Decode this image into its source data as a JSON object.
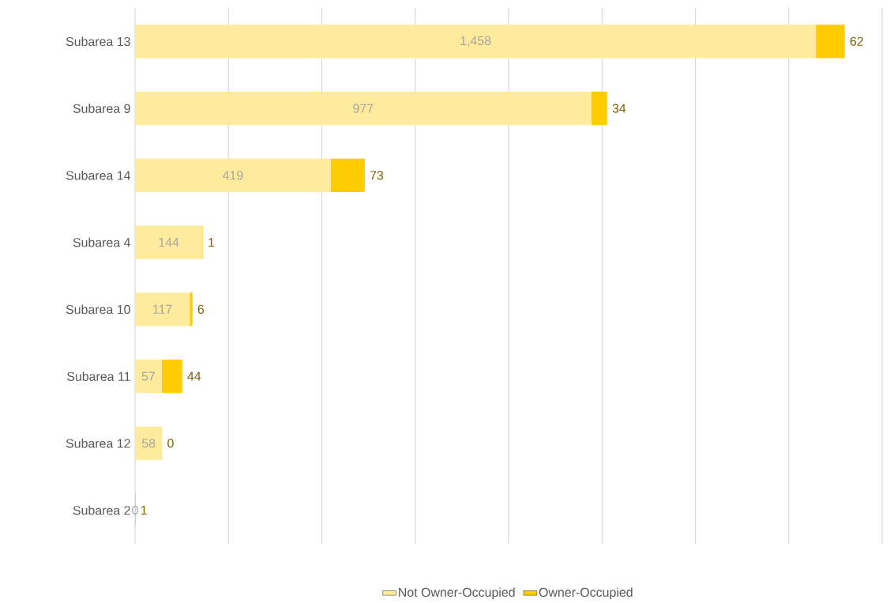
{
  "chart_data": {
    "type": "bar",
    "orientation": "horizontal",
    "stacked": true,
    "categories": [
      "Subarea 13",
      "Subarea 9",
      "Subarea 14",
      "Subarea 4",
      "Subarea 10",
      "Subarea 11",
      "Subarea 12",
      "Subarea 2"
    ],
    "series": [
      {
        "name": "Not Owner-Occupied",
        "color": "#ffeb9c",
        "values": [
          1458,
          977,
          419,
          144,
          117,
          57,
          58,
          0
        ],
        "value_labels": [
          "1,458",
          "977",
          "419",
          "144",
          "117",
          "57",
          "58",
          "0"
        ]
      },
      {
        "name": "Owner-Occupied",
        "color": "#ffcc00",
        "values": [
          62,
          34,
          73,
          1,
          6,
          44,
          0,
          1
        ],
        "value_labels": [
          "62",
          "34",
          "73",
          "1",
          "6",
          "44",
          "0",
          "1"
        ]
      }
    ],
    "xlim": [
      0,
      1600
    ],
    "xticks": [
      0,
      200,
      400,
      600,
      800,
      1000,
      1200,
      1400,
      1600
    ],
    "tick_labels": "y",
    "grid": "x",
    "legend": "bottom"
  }
}
